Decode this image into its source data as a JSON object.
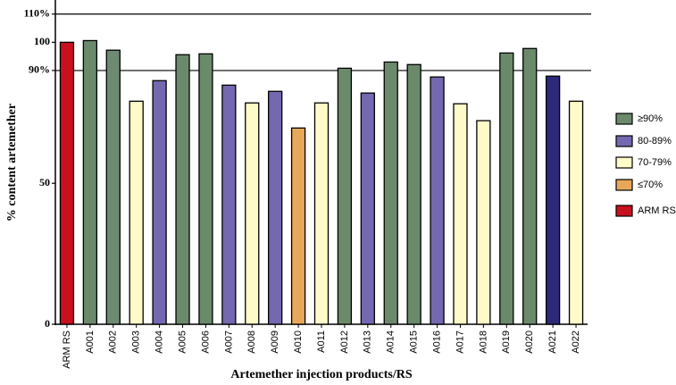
{
  "chart_data": {
    "type": "bar",
    "x_label": "Artemether injection products/RS",
    "y_label": "% content artemether",
    "categories": [
      "ARM RS",
      "A001",
      "A002",
      "A003",
      "A004",
      "A005",
      "A006",
      "A007",
      "A008",
      "A009",
      "A010",
      "A011",
      "A012",
      "A013",
      "A014",
      "A015",
      "A016",
      "A017",
      "A018",
      "A019",
      "A020",
      "A021",
      "A022"
    ],
    "values": [
      100.0,
      100.6,
      97.2,
      79.1,
      86.4,
      95.6,
      95.9,
      84.8,
      78.5,
      82.6,
      69.6,
      78.5,
      90.8,
      82.0,
      93.0,
      92.1,
      87.7,
      78.2,
      72.2,
      96.2,
      97.8,
      88.0,
      79.1
    ],
    "colors": [
      "#c8101e",
      "#6b8a6b",
      "#6f8a72",
      "#fffbc8",
      "#7468b0",
      "#6b8a6b",
      "#6b8a6b",
      "#7468b0",
      "#fffbc8",
      "#7468b0",
      "#e8a85a",
      "#fffbc8",
      "#6b8a6b",
      "#7468b0",
      "#6b8a6b",
      "#6b8a6b",
      "#7468b0",
      "#fffbc8",
      "#fffbc8",
      "#6b8a6b",
      "#6b8a6b",
      "#2e2a7a",
      "#fffbc8"
    ],
    "ylim": [
      0,
      115
    ],
    "yticks": [
      0,
      50,
      {
        "value": 90,
        "label": "90%"
      },
      100,
      {
        "value": 110,
        "label": "110%"
      }
    ],
    "reference_lines": [
      90,
      110
    ],
    "legend": [
      {
        "label": "≥90%",
        "color": "#6b8a6b"
      },
      {
        "label": "80-89%",
        "color": "#7468b0"
      },
      {
        "label": "70-79%",
        "color": "#fffbc8"
      },
      {
        "label": "≤70%",
        "color": "#e8a85a"
      },
      {
        "label": "ARM RS",
        "color": "#c8101e"
      }
    ]
  }
}
